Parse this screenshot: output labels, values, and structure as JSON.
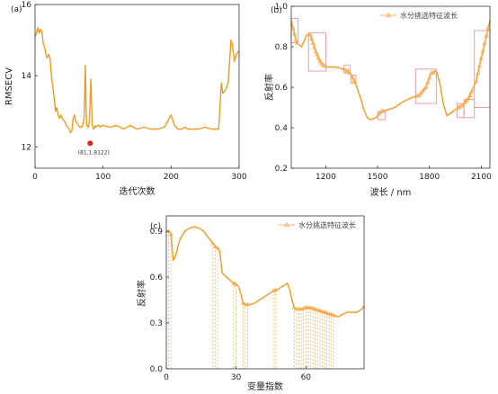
{
  "chart_data": [
    {
      "type": "line",
      "panel": "(a)",
      "xlabel": "迭代次数",
      "ylabel": "RMSECV",
      "xlim": [
        0,
        300
      ],
      "ylim": [
        11.4,
        16
      ],
      "xticks": [
        0,
        100,
        200,
        300
      ],
      "yticks": [
        12,
        14,
        16
      ],
      "color": "#f39a1e",
      "series": [
        {
          "x": [
            0,
            2,
            4,
            6,
            8,
            10,
            12,
            14,
            16,
            18,
            20,
            22,
            24,
            26,
            28,
            30,
            32,
            34,
            36,
            38,
            40,
            42,
            44,
            46,
            48,
            50,
            52,
            54,
            56,
            58,
            60,
            62,
            64,
            66,
            68,
            70,
            72,
            74,
            75,
            76,
            78,
            80,
            82,
            84,
            86,
            88,
            90,
            92,
            94,
            96,
            98,
            100,
            110,
            120,
            130,
            140,
            150,
            160,
            170,
            180,
            190,
            200,
            205,
            210,
            215,
            220,
            225,
            230,
            240,
            250,
            260,
            270,
            272,
            274,
            276,
            280,
            284,
            288,
            290,
            293,
            296,
            300
          ],
          "y": [
            15.1,
            15.2,
            15.35,
            15.2,
            15.3,
            15.25,
            14.9,
            14.8,
            14.6,
            14.5,
            14.6,
            14.5,
            14.0,
            13.7,
            13.4,
            13.0,
            13.1,
            12.9,
            12.8,
            12.9,
            12.8,
            12.75,
            12.7,
            12.6,
            12.55,
            12.5,
            12.4,
            12.45,
            12.8,
            12.9,
            12.7,
            12.65,
            12.6,
            12.55,
            12.55,
            12.6,
            12.8,
            14.3,
            13.0,
            12.6,
            12.55,
            12.7,
            13.9,
            12.6,
            12.5,
            12.6,
            12.55,
            12.6,
            12.6,
            12.55,
            12.6,
            12.6,
            12.55,
            12.6,
            12.5,
            12.6,
            12.5,
            12.55,
            12.5,
            12.5,
            12.55,
            12.9,
            12.6,
            12.5,
            12.5,
            12.55,
            12.5,
            12.5,
            12.5,
            12.55,
            12.5,
            12.5,
            13.2,
            13.8,
            13.5,
            13.6,
            13.8,
            15.0,
            14.9,
            14.4,
            14.6,
            14.7
          ]
        }
      ],
      "annotation": {
        "x": 81,
        "y": 12.1,
        "text": "(81,1.8122)",
        "color": "#e2231a"
      }
    },
    {
      "type": "line",
      "panel": "(b)",
      "xlabel": "波长 / nm",
      "ylabel": "反射率",
      "xlim": [
        1000,
        2150
      ],
      "ylim": [
        0.2,
        1.0
      ],
      "xticks": [
        1200,
        1500,
        1800,
        2100
      ],
      "yticks": [
        0.2,
        0.4,
        0.6,
        0.8,
        1.0
      ],
      "color": "#f39a1e",
      "legend": "水分挑选特征波长",
      "series": [
        {
          "x": [
            1000,
            1030,
            1060,
            1090,
            1110,
            1140,
            1170,
            1200,
            1230,
            1260,
            1300,
            1330,
            1360,
            1380,
            1400,
            1420,
            1440,
            1460,
            1490,
            1520,
            1560,
            1600,
            1650,
            1700,
            1740,
            1780,
            1810,
            1840,
            1860,
            1880,
            1900,
            1920,
            1950,
            1990,
            2030,
            2070,
            2110,
            2150
          ],
          "y": [
            0.93,
            0.82,
            0.8,
            0.86,
            0.86,
            0.78,
            0.72,
            0.7,
            0.7,
            0.7,
            0.69,
            0.68,
            0.64,
            0.6,
            0.55,
            0.49,
            0.45,
            0.44,
            0.45,
            0.48,
            0.49,
            0.5,
            0.53,
            0.55,
            0.56,
            0.6,
            0.67,
            0.68,
            0.62,
            0.52,
            0.46,
            0.47,
            0.49,
            0.51,
            0.55,
            0.63,
            0.78,
            0.93
          ]
        }
      ],
      "boxes": [
        {
          "x": [
            1000,
            1040
          ],
          "y": [
            0.82,
            0.94
          ]
        },
        {
          "x": [
            1100,
            1200
          ],
          "y": [
            0.68,
            0.87
          ]
        },
        {
          "x": [
            1305,
            1340
          ],
          "y": [
            0.67,
            0.71
          ]
        },
        {
          "x": [
            1345,
            1375
          ],
          "y": [
            0.62,
            0.66
          ]
        },
        {
          "x": [
            1500,
            1545
          ],
          "y": [
            0.44,
            0.48
          ]
        },
        {
          "x": [
            1720,
            1840
          ],
          "y": [
            0.52,
            0.69
          ]
        },
        {
          "x": [
            1960,
            2000
          ],
          "y": [
            0.45,
            0.52
          ]
        },
        {
          "x": [
            2000,
            2060
          ],
          "y": [
            0.45,
            0.54
          ]
        },
        {
          "x": [
            2060,
            2150
          ],
          "y": [
            0.5,
            0.88
          ]
        }
      ],
      "markers": [
        1010,
        1018,
        1026,
        1034,
        1110,
        1118,
        1126,
        1134,
        1142,
        1150,
        1158,
        1166,
        1174,
        1182,
        1190,
        1315,
        1325,
        1335,
        1355,
        1365,
        1510,
        1520,
        1530,
        1730,
        1740,
        1750,
        1760,
        1770,
        1780,
        1790,
        1800,
        1810,
        1820,
        1830,
        1965,
        1975,
        1985,
        2005,
        2015,
        2025,
        2035,
        2045,
        2070,
        2080,
        2090,
        2100,
        2110,
        2120,
        2130,
        2140
      ]
    },
    {
      "type": "line",
      "panel": "(c)",
      "xlabel": "变量指数",
      "ylabel": "反射率",
      "xlim": [
        0,
        85
      ],
      "ylim": [
        0.0,
        1.0
      ],
      "xticks": [
        0,
        30,
        60
      ],
      "yticks": [
        0.0,
        0.3,
        0.6,
        0.9
      ],
      "color": "#f39a1e",
      "legend": "水分挑选特征波长",
      "series": [
        {
          "x": [
            0,
            1,
            2,
            3,
            4,
            5,
            6,
            8,
            10,
            12,
            14,
            16,
            18,
            20,
            21,
            22,
            23,
            24,
            25,
            26,
            28,
            30,
            31,
            32,
            33,
            34,
            35,
            36,
            38,
            40,
            42,
            44,
            46,
            48,
            50,
            52,
            53,
            54,
            55,
            56,
            57,
            58,
            60,
            62,
            64,
            66,
            68,
            70,
            72,
            74,
            76,
            78,
            80,
            82,
            84,
            85
          ],
          "y": [
            0.89,
            0.9,
            0.88,
            0.71,
            0.74,
            0.8,
            0.85,
            0.9,
            0.92,
            0.93,
            0.92,
            0.9,
            0.86,
            0.82,
            0.8,
            0.79,
            0.77,
            0.63,
            0.61,
            0.6,
            0.57,
            0.55,
            0.54,
            0.49,
            0.43,
            0.42,
            0.42,
            0.42,
            0.43,
            0.45,
            0.47,
            0.49,
            0.51,
            0.52,
            0.54,
            0.56,
            0.52,
            0.45,
            0.4,
            0.39,
            0.39,
            0.39,
            0.4,
            0.4,
            0.39,
            0.38,
            0.37,
            0.36,
            0.35,
            0.34,
            0.36,
            0.37,
            0.37,
            0.37,
            0.39,
            0.41
          ]
        }
      ],
      "markers": [
        1,
        2,
        20,
        21,
        22,
        29,
        30,
        33,
        34,
        35,
        46,
        47,
        55,
        56,
        57,
        58,
        59,
        60,
        61,
        62,
        63,
        64,
        65,
        66,
        67,
        68,
        69,
        70,
        71,
        72
      ]
    }
  ]
}
